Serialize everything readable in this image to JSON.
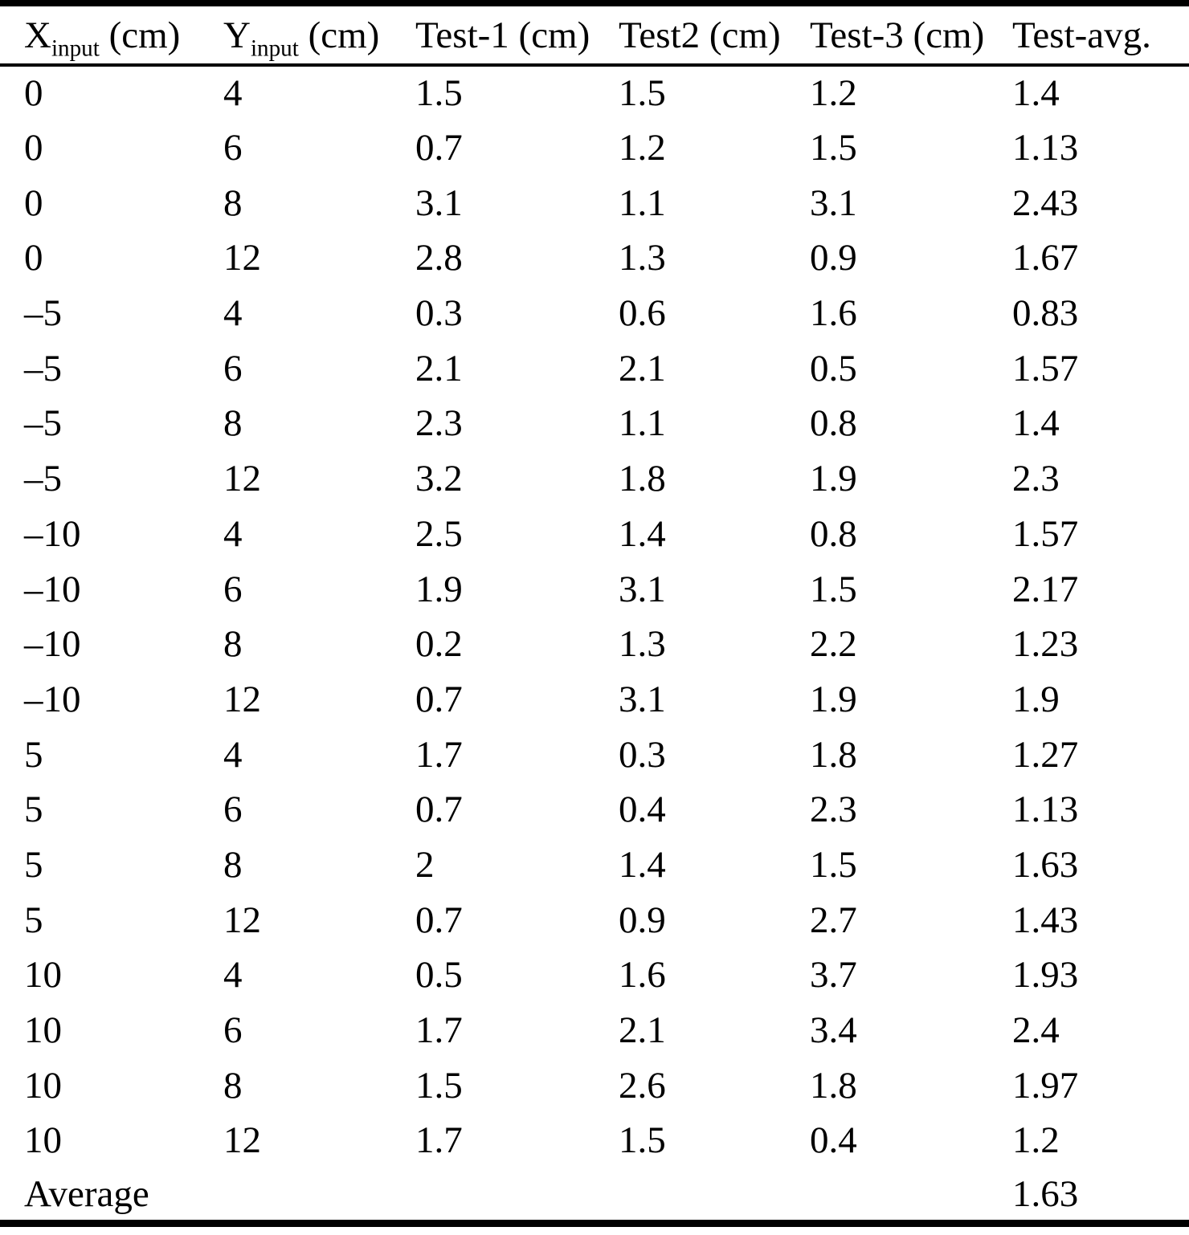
{
  "style": {
    "text_color": "#000000",
    "background_color": "#ffffff",
    "rule_color": "#000000"
  },
  "table": {
    "columns": [
      {
        "base": "X",
        "sub": "input",
        "unit": " (cm)"
      },
      {
        "base": "Y",
        "sub": "input",
        "unit": " (cm)"
      },
      {
        "label": "Test-1 (cm)"
      },
      {
        "label": "Test2 (cm)"
      },
      {
        "label": "Test-3 (cm)"
      },
      {
        "label": "Test-avg."
      }
    ],
    "rows": [
      [
        "0",
        "4",
        "1.5",
        "1.5",
        "1.2",
        "1.4"
      ],
      [
        "0",
        "6",
        "0.7",
        "1.2",
        "1.5",
        "1.13"
      ],
      [
        "0",
        "8",
        "3.1",
        "1.1",
        "3.1",
        "2.43"
      ],
      [
        "0",
        "12",
        "2.8",
        "1.3",
        "0.9",
        "1.67"
      ],
      [
        "–5",
        "4",
        "0.3",
        "0.6",
        "1.6",
        "0.83"
      ],
      [
        "–5",
        "6",
        "2.1",
        "2.1",
        "0.5",
        "1.57"
      ],
      [
        "–5",
        "8",
        "2.3",
        "1.1",
        "0.8",
        "1.4"
      ],
      [
        "–5",
        "12",
        "3.2",
        "1.8",
        "1.9",
        "2.3"
      ],
      [
        "–10",
        "4",
        "2.5",
        "1.4",
        "0.8",
        "1.57"
      ],
      [
        "–10",
        "6",
        "1.9",
        "3.1",
        "1.5",
        "2.17"
      ],
      [
        "–10",
        "8",
        "0.2",
        "1.3",
        "2.2",
        "1.23"
      ],
      [
        "–10",
        "12",
        "0.7",
        "3.1",
        "1.9",
        "1.9"
      ],
      [
        "5",
        "4",
        "1.7",
        "0.3",
        "1.8",
        "1.27"
      ],
      [
        "5",
        "6",
        "0.7",
        "0.4",
        "2.3",
        "1.13"
      ],
      [
        "5",
        "8",
        "2",
        "1.4",
        "1.5",
        "1.63"
      ],
      [
        "5",
        "12",
        "0.7",
        "0.9",
        "2.7",
        "1.43"
      ],
      [
        "10",
        "4",
        "0.5",
        "1.6",
        "3.7",
        "1.93"
      ],
      [
        "10",
        "6",
        "1.7",
        "2.1",
        "3.4",
        "2.4"
      ],
      [
        "10",
        "8",
        "1.5",
        "2.6",
        "1.8",
        "1.97"
      ],
      [
        "10",
        "12",
        "1.7",
        "1.5",
        "0.4",
        "1.2"
      ]
    ],
    "footer": {
      "label": "Average",
      "value": "1.63"
    }
  }
}
